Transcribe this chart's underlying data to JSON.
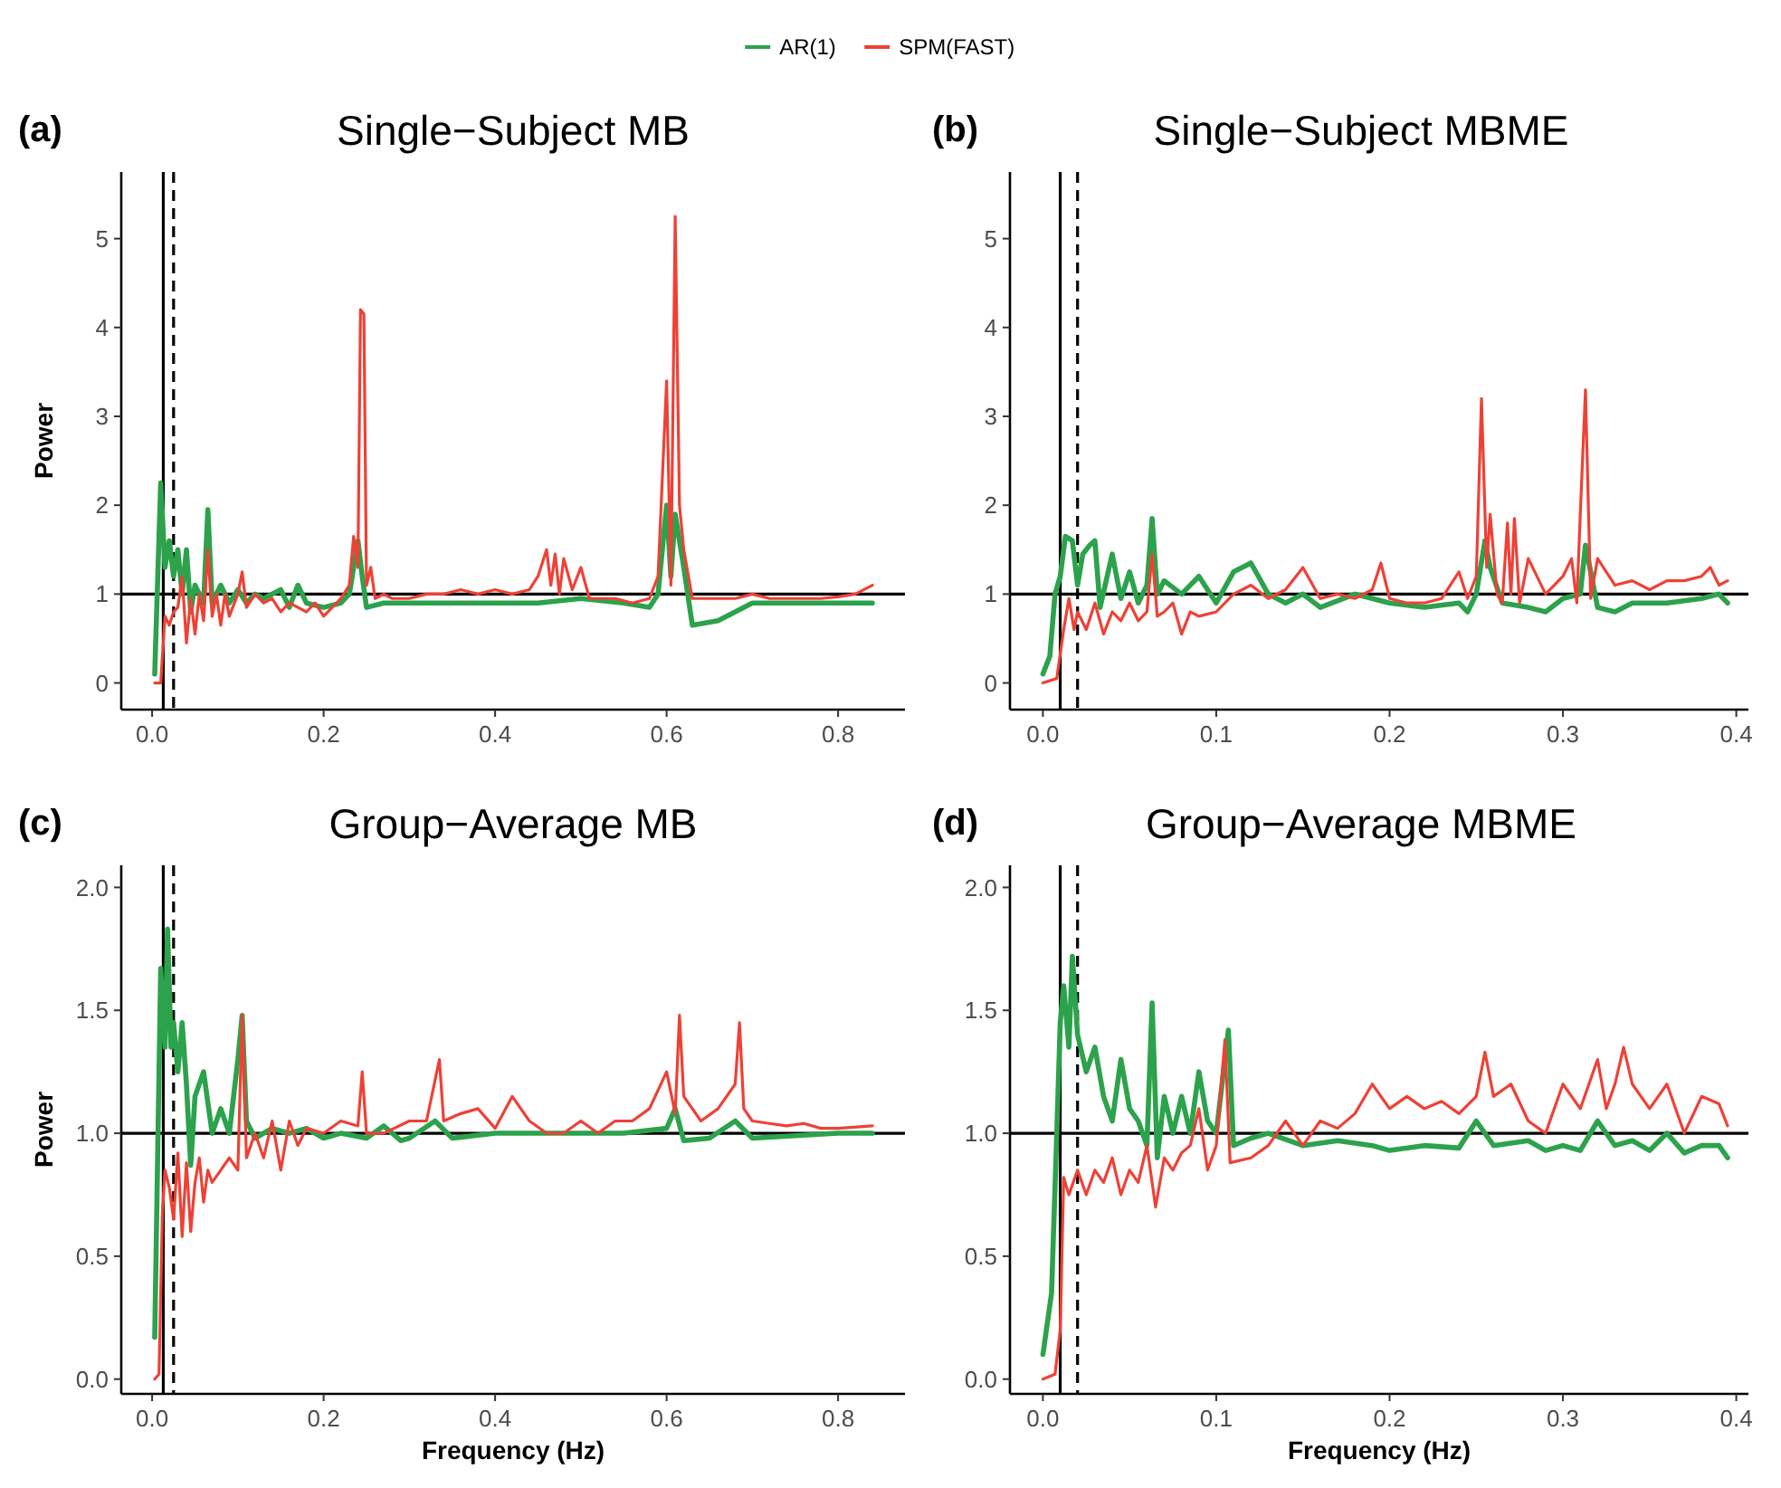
{
  "chart_data": [
    {
      "type": "line",
      "title": "Single−Subject MB",
      "ylabel": "Power",
      "annotations": [
        "(a)"
      ],
      "legend": "top",
      "xlim": [
        -0.036,
        0.878
      ],
      "ylim": [
        -0.3,
        5.75
      ],
      "xticks": [
        {
          "value": 0,
          "label": "0.0"
        },
        {
          "value": 0.2,
          "label": "0.2"
        },
        {
          "value": 0.4,
          "label": "0.4"
        },
        {
          "value": 0.6,
          "label": "0.6"
        },
        {
          "value": 0.8,
          "label": "0.8"
        }
      ],
      "yticks": [
        0,
        1,
        2,
        3,
        4,
        5
      ],
      "grid": false,
      "ref_lines": [
        {
          "axis": "x",
          "value": 0.013,
          "color": "#000000",
          "line_style": "solid"
        },
        {
          "axis": "x",
          "value": 0.025,
          "color": "#000000",
          "line_style": "dashed"
        },
        {
          "axis": "y",
          "value": 1,
          "color": "#000000",
          "line_style": "solid"
        }
      ],
      "series": [
        {
          "name": "AR(1)",
          "color": "#2ca24c",
          "x": [
            0.003,
            0.01,
            0.015,
            0.02,
            0.025,
            0.03,
            0.035,
            0.04,
            0.045,
            0.05,
            0.06,
            0.065,
            0.07,
            0.08,
            0.09,
            0.1,
            0.11,
            0.12,
            0.13,
            0.15,
            0.16,
            0.17,
            0.18,
            0.2,
            0.22,
            0.23,
            0.24,
            0.245,
            0.25,
            0.27,
            0.3,
            0.35,
            0.4,
            0.45,
            0.5,
            0.55,
            0.58,
            0.59,
            0.6,
            0.605,
            0.61,
            0.62,
            0.63,
            0.66,
            0.68,
            0.7,
            0.75,
            0.8,
            0.84
          ],
          "values": [
            0.1,
            2.25,
            1.3,
            1.6,
            1.2,
            1.5,
            1.0,
            1.5,
            0.8,
            1.1,
            0.9,
            1.95,
            0.9,
            1.1,
            0.9,
            1.05,
            0.9,
            1.0,
            0.95,
            1.05,
            0.85,
            1.1,
            0.9,
            0.85,
            0.9,
            1.0,
            1.6,
            1.2,
            0.85,
            0.9,
            0.9,
            0.9,
            0.9,
            0.9,
            0.95,
            0.9,
            0.85,
            1.0,
            2.0,
            1.2,
            1.9,
            1.3,
            0.65,
            0.7,
            0.8,
            0.9,
            0.9,
            0.9,
            0.9
          ]
        },
        {
          "name": "SPM(FAST)",
          "color": "#ee4136",
          "x": [
            0.003,
            0.01,
            0.015,
            0.02,
            0.025,
            0.03,
            0.035,
            0.04,
            0.045,
            0.05,
            0.055,
            0.06,
            0.065,
            0.07,
            0.075,
            0.08,
            0.085,
            0.09,
            0.1,
            0.105,
            0.11,
            0.12,
            0.13,
            0.14,
            0.15,
            0.16,
            0.17,
            0.18,
            0.19,
            0.2,
            0.21,
            0.22,
            0.23,
            0.235,
            0.24,
            0.243,
            0.247,
            0.25,
            0.255,
            0.26,
            0.27,
            0.28,
            0.3,
            0.32,
            0.34,
            0.36,
            0.38,
            0.4,
            0.42,
            0.44,
            0.45,
            0.46,
            0.465,
            0.47,
            0.475,
            0.48,
            0.49,
            0.5,
            0.51,
            0.52,
            0.54,
            0.56,
            0.58,
            0.59,
            0.6,
            0.605,
            0.61,
            0.615,
            0.62,
            0.63,
            0.64,
            0.66,
            0.68,
            0.7,
            0.72,
            0.74,
            0.76,
            0.78,
            0.8,
            0.82,
            0.84
          ],
          "values": [
            0.0,
            0.0,
            0.75,
            0.65,
            0.8,
            0.85,
            1.2,
            0.45,
            0.95,
            0.55,
            1.0,
            0.7,
            1.5,
            0.75,
            1.0,
            0.65,
            1.0,
            0.75,
            1.0,
            1.25,
            0.85,
            1.0,
            0.9,
            0.95,
            0.8,
            0.9,
            0.85,
            0.8,
            0.9,
            0.75,
            0.85,
            0.95,
            1.1,
            1.65,
            1.3,
            4.2,
            4.15,
            1.1,
            1.3,
            0.95,
            1.0,
            0.95,
            0.95,
            1.0,
            1.0,
            1.05,
            1.0,
            1.05,
            1.0,
            1.05,
            1.2,
            1.5,
            1.1,
            1.45,
            1.0,
            1.4,
            1.05,
            1.3,
            0.95,
            0.95,
            0.95,
            0.9,
            0.95,
            1.2,
            3.4,
            1.1,
            5.25,
            2.0,
            1.5,
            0.95,
            0.95,
            0.95,
            0.95,
            1.0,
            0.95,
            0.95,
            0.95,
            0.95,
            0.97,
            1.0,
            1.1
          ]
        }
      ]
    },
    {
      "type": "line",
      "title": "Single−Subject MBME",
      "annotations": [
        "(b)"
      ],
      "xlim": [
        -0.019,
        0.407
      ],
      "ylim": [
        -0.3,
        5.75
      ],
      "xticks": [
        {
          "value": 0,
          "label": "0.0"
        },
        {
          "value": 0.1,
          "label": "0.1"
        },
        {
          "value": 0.2,
          "label": "0.2"
        },
        {
          "value": 0.3,
          "label": "0.3"
        },
        {
          "value": 0.4,
          "label": "0.4"
        }
      ],
      "yticks": [
        0,
        1,
        2,
        3,
        4,
        5
      ],
      "grid": false,
      "ref_lines": [
        {
          "axis": "x",
          "value": 0.01,
          "color": "#000000",
          "line_style": "solid"
        },
        {
          "axis": "x",
          "value": 0.02,
          "color": "#000000",
          "line_style": "dashed"
        },
        {
          "axis": "y",
          "value": 1,
          "color": "#000000",
          "line_style": "solid"
        }
      ],
      "series": [
        {
          "color": "#2ca24c",
          "x": [
            0.0,
            0.004,
            0.007,
            0.01,
            0.013,
            0.017,
            0.02,
            0.023,
            0.027,
            0.03,
            0.033,
            0.04,
            0.045,
            0.05,
            0.055,
            0.06,
            0.063,
            0.066,
            0.07,
            0.08,
            0.09,
            0.1,
            0.11,
            0.12,
            0.13,
            0.14,
            0.15,
            0.16,
            0.18,
            0.2,
            0.22,
            0.24,
            0.245,
            0.25,
            0.255,
            0.258,
            0.265,
            0.28,
            0.29,
            0.3,
            0.31,
            0.313,
            0.32,
            0.33,
            0.34,
            0.36,
            0.38,
            0.39,
            0.395
          ],
          "values": [
            0.1,
            0.3,
            1.0,
            1.2,
            1.65,
            1.6,
            1.1,
            1.45,
            1.55,
            1.6,
            0.85,
            1.45,
            0.95,
            1.25,
            0.9,
            1.1,
            1.85,
            1.0,
            1.15,
            1.0,
            1.2,
            0.9,
            1.25,
            1.35,
            1.0,
            0.9,
            1.0,
            0.85,
            1.0,
            0.9,
            0.85,
            0.9,
            0.8,
            1.0,
            1.6,
            1.3,
            0.9,
            0.85,
            0.8,
            0.95,
            1.0,
            1.55,
            0.85,
            0.8,
            0.9,
            0.9,
            0.95,
            1.0,
            0.9
          ]
        },
        {
          "color": "#ee4136",
          "x": [
            0.0,
            0.008,
            0.012,
            0.015,
            0.018,
            0.02,
            0.025,
            0.03,
            0.035,
            0.04,
            0.045,
            0.05,
            0.055,
            0.06,
            0.063,
            0.066,
            0.07,
            0.075,
            0.08,
            0.085,
            0.09,
            0.1,
            0.11,
            0.12,
            0.13,
            0.14,
            0.15,
            0.16,
            0.17,
            0.18,
            0.19,
            0.195,
            0.2,
            0.21,
            0.22,
            0.23,
            0.24,
            0.245,
            0.25,
            0.253,
            0.256,
            0.258,
            0.262,
            0.265,
            0.268,
            0.27,
            0.272,
            0.275,
            0.28,
            0.29,
            0.3,
            0.305,
            0.308,
            0.31,
            0.313,
            0.316,
            0.32,
            0.33,
            0.34,
            0.35,
            0.36,
            0.37,
            0.38,
            0.385,
            0.39,
            0.395
          ],
          "values": [
            0.0,
            0.05,
            0.6,
            0.95,
            0.6,
            0.8,
            0.6,
            0.9,
            0.55,
            0.8,
            0.7,
            0.9,
            0.7,
            0.8,
            1.45,
            0.75,
            0.8,
            0.9,
            0.55,
            0.8,
            0.75,
            0.8,
            1.0,
            1.1,
            0.95,
            1.05,
            1.3,
            0.95,
            1.0,
            0.95,
            1.05,
            1.35,
            0.95,
            0.9,
            0.9,
            0.95,
            1.25,
            0.95,
            1.2,
            3.2,
            1.3,
            1.9,
            1.0,
            0.9,
            1.8,
            1.0,
            1.85,
            0.9,
            1.4,
            1.0,
            1.2,
            1.4,
            0.9,
            1.9,
            3.3,
            0.95,
            1.4,
            1.1,
            1.15,
            1.05,
            1.15,
            1.15,
            1.2,
            1.3,
            1.1,
            1.15
          ]
        }
      ]
    },
    {
      "type": "line",
      "title": "Group−Average MB",
      "xlabel": "Frequency (Hz)",
      "ylabel": "Power",
      "annotations": [
        "(c)"
      ],
      "xlim": [
        -0.036,
        0.878
      ],
      "ylim": [
        -0.06,
        2.09
      ],
      "xticks": [
        {
          "value": 0,
          "label": "0.0"
        },
        {
          "value": 0.2,
          "label": "0.2"
        },
        {
          "value": 0.4,
          "label": "0.4"
        },
        {
          "value": 0.6,
          "label": "0.6"
        },
        {
          "value": 0.8,
          "label": "0.8"
        }
      ],
      "yticks": [
        {
          "value": 0,
          "label": "0.0"
        },
        {
          "value": 0.5,
          "label": "0.5"
        },
        {
          "value": 1,
          "label": "1.0"
        },
        {
          "value": 1.5,
          "label": "1.5"
        },
        {
          "value": 2,
          "label": "2.0"
        }
      ],
      "grid": false,
      "ref_lines": [
        {
          "axis": "x",
          "value": 0.013,
          "color": "#000000",
          "line_style": "solid"
        },
        {
          "axis": "x",
          "value": 0.025,
          "color": "#000000",
          "line_style": "dashed"
        },
        {
          "axis": "y",
          "value": 1,
          "color": "#000000",
          "line_style": "solid"
        }
      ],
      "series": [
        {
          "color": "#2ca24c",
          "x": [
            0.003,
            0.01,
            0.015,
            0.018,
            0.022,
            0.025,
            0.03,
            0.035,
            0.04,
            0.045,
            0.05,
            0.06,
            0.07,
            0.08,
            0.09,
            0.1,
            0.105,
            0.11,
            0.12,
            0.14,
            0.16,
            0.18,
            0.2,
            0.22,
            0.25,
            0.27,
            0.29,
            0.3,
            0.33,
            0.35,
            0.4,
            0.45,
            0.5,
            0.55,
            0.6,
            0.61,
            0.62,
            0.65,
            0.68,
            0.7,
            0.75,
            0.8,
            0.84
          ],
          "values": [
            0.17,
            1.67,
            1.35,
            1.83,
            1.35,
            1.45,
            1.25,
            1.45,
            1.2,
            0.87,
            1.15,
            1.25,
            1.0,
            1.1,
            1.0,
            1.3,
            1.48,
            1.05,
            0.98,
            1.02,
            1.0,
            1.02,
            0.98,
            1.0,
            0.98,
            1.03,
            0.97,
            0.98,
            1.05,
            0.98,
            1.0,
            1.0,
            1.0,
            1.0,
            1.02,
            1.1,
            0.97,
            0.98,
            1.05,
            0.98,
            0.99,
            1.0,
            1.0
          ]
        },
        {
          "color": "#ee4136",
          "x": [
            0.003,
            0.008,
            0.012,
            0.015,
            0.02,
            0.025,
            0.03,
            0.035,
            0.04,
            0.045,
            0.05,
            0.055,
            0.06,
            0.065,
            0.07,
            0.08,
            0.09,
            0.1,
            0.105,
            0.11,
            0.12,
            0.13,
            0.14,
            0.15,
            0.16,
            0.17,
            0.18,
            0.2,
            0.22,
            0.24,
            0.245,
            0.25,
            0.27,
            0.3,
            0.32,
            0.335,
            0.34,
            0.36,
            0.38,
            0.4,
            0.42,
            0.44,
            0.46,
            0.48,
            0.5,
            0.52,
            0.54,
            0.56,
            0.58,
            0.6,
            0.61,
            0.615,
            0.62,
            0.64,
            0.66,
            0.68,
            0.685,
            0.69,
            0.7,
            0.72,
            0.74,
            0.76,
            0.78,
            0.8,
            0.84
          ],
          "values": [
            0.0,
            0.02,
            0.68,
            0.85,
            0.78,
            0.65,
            0.92,
            0.58,
            0.88,
            0.6,
            0.8,
            0.9,
            0.72,
            0.85,
            0.8,
            0.85,
            0.9,
            0.85,
            1.48,
            0.9,
            1.0,
            0.9,
            1.05,
            0.85,
            1.05,
            0.95,
            1.02,
            1.0,
            1.05,
            1.03,
            1.25,
            1.0,
            1.0,
            1.05,
            1.05,
            1.3,
            1.05,
            1.08,
            1.1,
            1.02,
            1.15,
            1.05,
            1.0,
            1.0,
            1.05,
            1.0,
            1.05,
            1.05,
            1.1,
            1.25,
            1.08,
            1.48,
            1.15,
            1.05,
            1.1,
            1.2,
            1.45,
            1.1,
            1.05,
            1.04,
            1.03,
            1.04,
            1.02,
            1.02,
            1.03
          ]
        }
      ]
    },
    {
      "type": "line",
      "title": "Group−Average MBME",
      "xlabel": "Frequency (Hz)",
      "annotations": [
        "(d)"
      ],
      "xlim": [
        -0.019,
        0.407
      ],
      "ylim": [
        -0.06,
        2.09
      ],
      "xticks": [
        {
          "value": 0,
          "label": "0.0"
        },
        {
          "value": 0.1,
          "label": "0.1"
        },
        {
          "value": 0.2,
          "label": "0.2"
        },
        {
          "value": 0.3,
          "label": "0.3"
        },
        {
          "value": 0.4,
          "label": "0.4"
        }
      ],
      "yticks": [
        {
          "value": 0,
          "label": "0.0"
        },
        {
          "value": 0.5,
          "label": "0.5"
        },
        {
          "value": 1,
          "label": "1.0"
        },
        {
          "value": 1.5,
          "label": "1.5"
        },
        {
          "value": 2,
          "label": "2.0"
        }
      ],
      "grid": false,
      "ref_lines": [
        {
          "axis": "x",
          "value": 0.01,
          "color": "#000000",
          "line_style": "solid"
        },
        {
          "axis": "x",
          "value": 0.02,
          "color": "#000000",
          "line_style": "dashed"
        },
        {
          "axis": "y",
          "value": 1,
          "color": "#000000",
          "line_style": "solid"
        }
      ],
      "series": [
        {
          "color": "#2ca24c",
          "x": [
            0.0,
            0.005,
            0.008,
            0.01,
            0.012,
            0.015,
            0.017,
            0.02,
            0.025,
            0.03,
            0.035,
            0.04,
            0.045,
            0.05,
            0.055,
            0.06,
            0.063,
            0.066,
            0.07,
            0.075,
            0.08,
            0.085,
            0.09,
            0.095,
            0.1,
            0.105,
            0.107,
            0.11,
            0.12,
            0.13,
            0.15,
            0.17,
            0.19,
            0.2,
            0.22,
            0.24,
            0.25,
            0.26,
            0.28,
            0.29,
            0.3,
            0.31,
            0.32,
            0.33,
            0.34,
            0.35,
            0.36,
            0.37,
            0.38,
            0.39,
            0.395
          ],
          "values": [
            0.1,
            0.35,
            1.0,
            1.45,
            1.6,
            1.35,
            1.72,
            1.4,
            1.25,
            1.35,
            1.15,
            1.05,
            1.3,
            1.1,
            1.05,
            0.95,
            1.53,
            0.9,
            1.15,
            1.0,
            1.15,
            1.0,
            1.25,
            1.05,
            1.0,
            1.3,
            1.42,
            0.95,
            0.98,
            1.0,
            0.95,
            0.97,
            0.95,
            0.93,
            0.95,
            0.94,
            1.05,
            0.95,
            0.97,
            0.93,
            0.95,
            0.93,
            1.05,
            0.95,
            0.97,
            0.93,
            1.0,
            0.92,
            0.95,
            0.95,
            0.9
          ]
        },
        {
          "color": "#ee4136",
          "x": [
            0.0,
            0.007,
            0.01,
            0.012,
            0.015,
            0.02,
            0.025,
            0.03,
            0.035,
            0.04,
            0.045,
            0.05,
            0.055,
            0.06,
            0.065,
            0.07,
            0.075,
            0.08,
            0.085,
            0.09,
            0.095,
            0.1,
            0.105,
            0.108,
            0.12,
            0.13,
            0.14,
            0.15,
            0.16,
            0.17,
            0.18,
            0.19,
            0.2,
            0.21,
            0.22,
            0.23,
            0.24,
            0.25,
            0.255,
            0.26,
            0.27,
            0.28,
            0.29,
            0.3,
            0.31,
            0.32,
            0.325,
            0.33,
            0.335,
            0.34,
            0.35,
            0.36,
            0.37,
            0.38,
            0.39,
            0.395
          ],
          "values": [
            0.0,
            0.02,
            0.2,
            0.82,
            0.75,
            0.85,
            0.75,
            0.85,
            0.8,
            0.9,
            0.75,
            0.85,
            0.8,
            0.95,
            0.7,
            0.9,
            0.85,
            0.92,
            0.95,
            1.1,
            0.85,
            0.95,
            1.38,
            0.88,
            0.9,
            0.95,
            1.05,
            0.95,
            1.05,
            1.02,
            1.08,
            1.2,
            1.1,
            1.15,
            1.1,
            1.13,
            1.08,
            1.15,
            1.33,
            1.15,
            1.2,
            1.05,
            1.0,
            1.2,
            1.1,
            1.3,
            1.1,
            1.2,
            1.35,
            1.2,
            1.1,
            1.2,
            1.0,
            1.15,
            1.12,
            1.03
          ]
        }
      ]
    }
  ]
}
